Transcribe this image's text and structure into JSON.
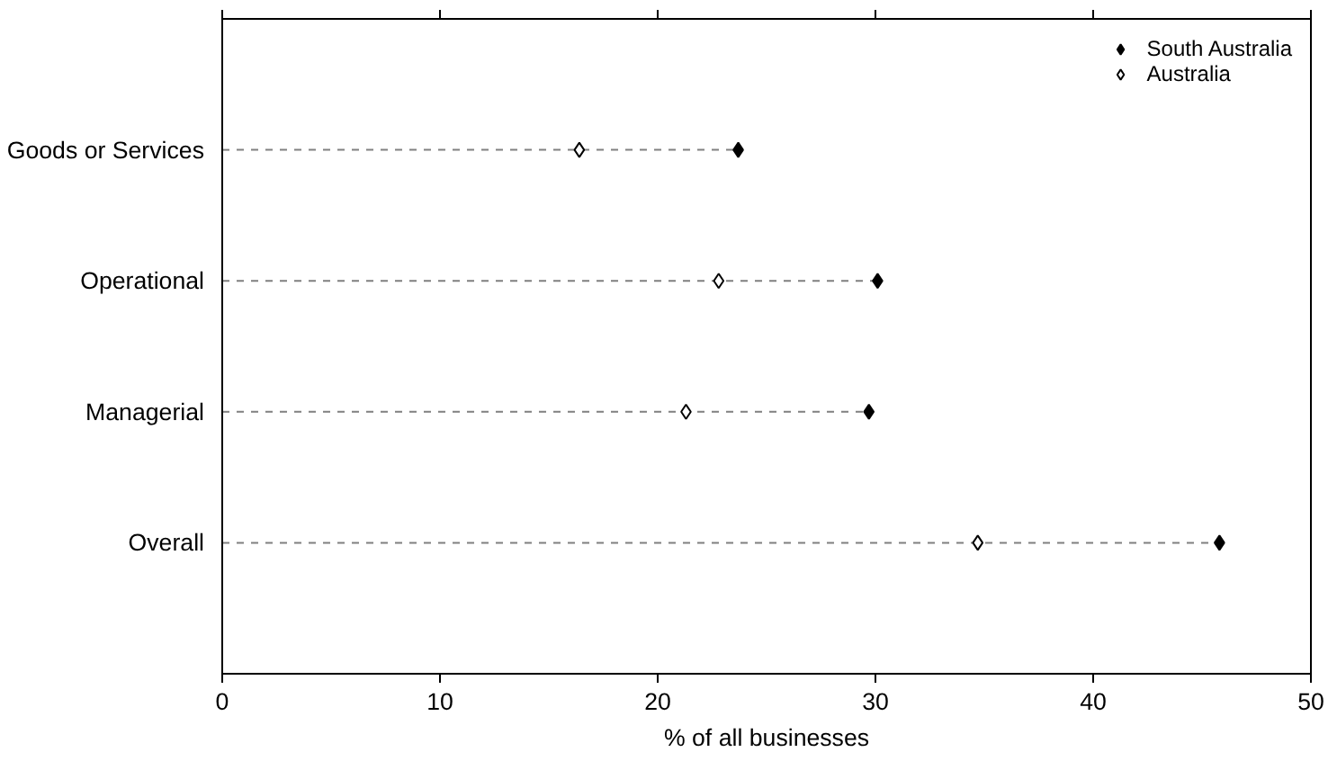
{
  "chart_data": {
    "type": "lollipop",
    "orientation": "horizontal",
    "xlabel": "% of all businesses",
    "categories": [
      "Goods or Services",
      "Operational",
      "Managerial",
      "Overall"
    ],
    "series": [
      {
        "name": "South Australia",
        "color": "#000000",
        "marker": "diamond",
        "values": [
          23.7,
          30.1,
          29.7,
          45.8
        ]
      },
      {
        "name": "Australia",
        "color": "#ffffff",
        "marker": "diamond",
        "values": [
          16.4,
          22.8,
          21.3,
          34.7
        ]
      }
    ],
    "xlim": [
      0,
      50
    ],
    "xticks": [
      0,
      10,
      20,
      30,
      40,
      50
    ],
    "line_style": "dashed",
    "grid": false,
    "legend": "top right"
  }
}
